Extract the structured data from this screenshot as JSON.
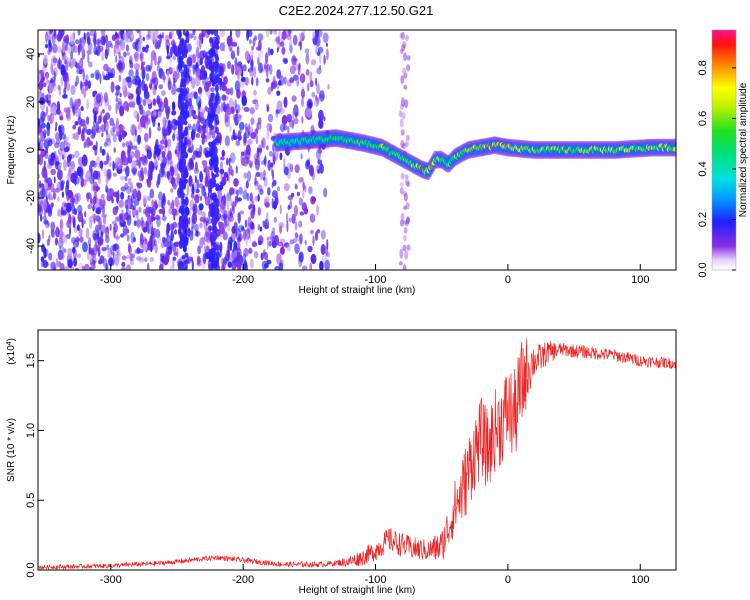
{
  "chart_data": [
    {
      "type": "heatmap",
      "title": "C2E2.2024.277.12.50.G21",
      "xlabel": "Height of straight line (km)",
      "ylabel": "Frequency (Hz)",
      "xlim": [
        -355,
        127
      ],
      "ylim": [
        -50,
        50
      ],
      "x_ticks": [
        -300,
        -200,
        -100,
        0,
        100
      ],
      "y_ticks": [
        -40,
        -20,
        0,
        20,
        40
      ],
      "x_tick_labels": [
        "-300",
        "-200",
        "-100",
        "0",
        "100"
      ],
      "y_tick_labels": [
        "-40",
        "-20",
        "0",
        "20",
        "40"
      ],
      "colorbar": {
        "label": "Normalized spectral amplitude",
        "range": [
          0,
          0.95
        ],
        "ticks": [
          0.0,
          0.2,
          0.4,
          0.6,
          0.8
        ],
        "tick_labels": [
          "0.0",
          "0.2",
          "0.4",
          "0.6",
          "0.8"
        ],
        "colormap": "rainbow"
      },
      "signal_ridge": {
        "x": [
          -175,
          -150,
          -130,
          -110,
          -95,
          -85,
          -75,
          -65,
          -60,
          -55,
          -50,
          -45,
          -40,
          -30,
          -20,
          -10,
          0,
          20,
          50,
          80,
          110,
          127
        ],
        "y": [
          3,
          4,
          5,
          3,
          1,
          -2,
          -5,
          -8,
          -9,
          -4,
          -4,
          -6,
          -3,
          0,
          1,
          2,
          1,
          0,
          0,
          0,
          1,
          1
        ],
        "amplitude": [
          0.45,
          0.5,
          0.55,
          0.6,
          0.6,
          0.6,
          0.55,
          0.8,
          0.85,
          0.7,
          0.6,
          0.55,
          0.65,
          0.75,
          0.8,
          0.85,
          0.8,
          0.65,
          0.65,
          0.65,
          0.7,
          0.7
        ]
      },
      "noise_region_xlim": [
        -355,
        -135
      ],
      "vertical_streaks_x": [
        -245,
        -222,
        -78
      ]
    },
    {
      "type": "line",
      "title": "",
      "xlabel": "Height of straight line (km)",
      "ylabel": "SNR (10 * v/v)",
      "scale_note": "(x10",
      "scale_exp": "4",
      "xlim": [
        -355,
        127
      ],
      "ylim": [
        0,
        1.72
      ],
      "x_ticks": [
        -300,
        -200,
        -100,
        0,
        100
      ],
      "y_ticks": [
        0.0,
        0.5,
        1.0,
        1.5
      ],
      "x_tick_labels": [
        "-300",
        "-200",
        "-100",
        "0",
        "100"
      ],
      "y_tick_labels": [
        "0.0",
        "0.5",
        "1.0",
        "1.5"
      ],
      "series_color": "#ee2222",
      "envelope": {
        "x": [
          -355,
          -300,
          -260,
          -240,
          -220,
          -200,
          -170,
          -140,
          -120,
          -110,
          -100,
          -90,
          -80,
          -70,
          -60,
          -50,
          -45,
          -40,
          -35,
          -30,
          -25,
          -20,
          -15,
          -10,
          -5,
          0,
          5,
          10,
          15,
          20,
          25,
          30,
          40,
          50,
          60,
          80,
          100,
          127
        ],
        "y": [
          0.02,
          0.03,
          0.05,
          0.07,
          0.09,
          0.07,
          0.04,
          0.04,
          0.06,
          0.09,
          0.14,
          0.22,
          0.18,
          0.15,
          0.14,
          0.17,
          0.3,
          0.45,
          0.55,
          0.7,
          0.85,
          0.95,
          0.85,
          1.0,
          1.05,
          1.15,
          1.1,
          1.3,
          1.45,
          1.5,
          1.52,
          1.56,
          1.58,
          1.57,
          1.56,
          1.54,
          1.5,
          1.48
        ]
      },
      "noise_amplitude": {
        "x": [
          -355,
          -130,
          -110,
          -90,
          -60,
          -50,
          -40,
          -30,
          -10,
          0,
          10,
          20,
          40,
          127
        ],
        "y": [
          0.015,
          0.02,
          0.06,
          0.09,
          0.08,
          0.12,
          0.2,
          0.28,
          0.3,
          0.32,
          0.35,
          0.12,
          0.05,
          0.04
        ]
      }
    }
  ]
}
